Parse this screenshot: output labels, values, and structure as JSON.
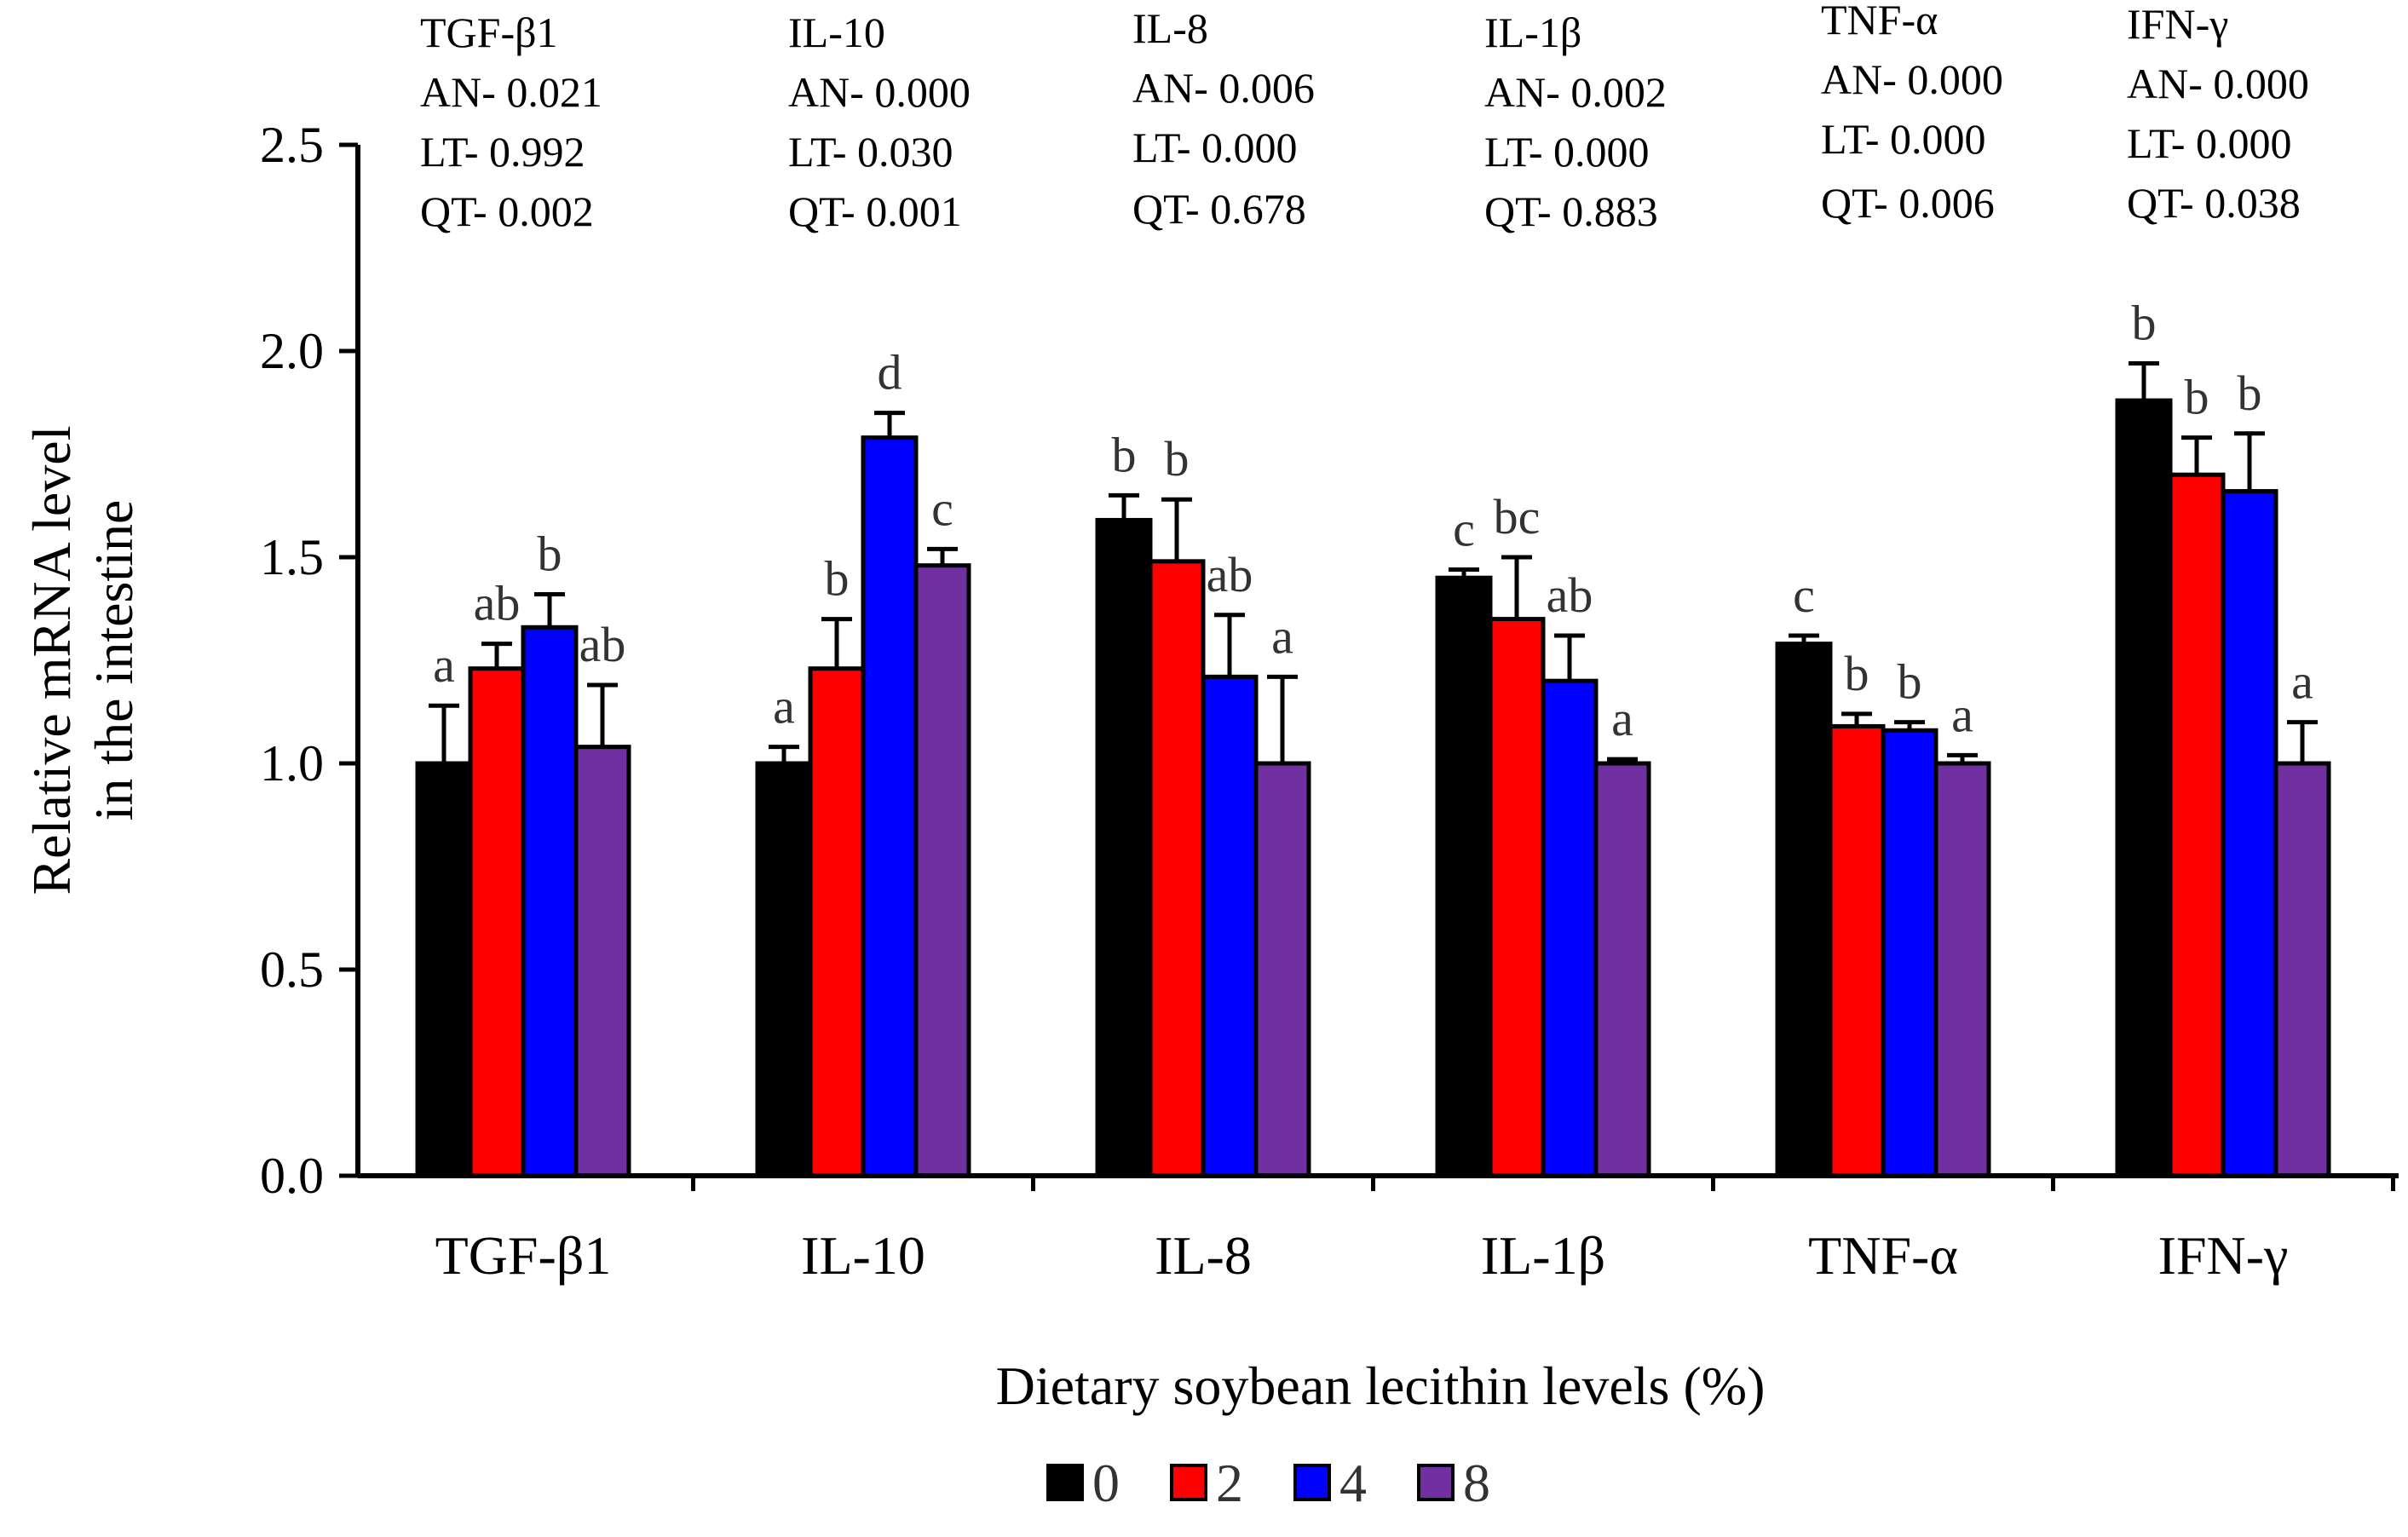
{
  "chart_data": {
    "type": "bar",
    "title": "",
    "ylabel": [
      "Relative mRNA level",
      "in the intestine"
    ],
    "xlabel": "Dietary soybean lecithin levels (%)",
    "ylim": [
      0,
      2.5
    ],
    "yticks": [
      0.0,
      0.5,
      1.0,
      1.5,
      2.0,
      2.5
    ],
    "ytick_labels": [
      "0.0",
      "0.5",
      "1.0",
      "1.5",
      "2.0",
      "2.5"
    ],
    "categories": [
      "TGF-β1",
      "IL-10",
      "IL-8",
      "IL-1β",
      "TNF-α",
      "IFN-γ"
    ],
    "series": [
      {
        "name": "0",
        "color": "#000000",
        "values": [
          1.0,
          1.0,
          1.59,
          1.45,
          1.29,
          1.88
        ],
        "errors": [
          0.14,
          0.04,
          0.06,
          0.02,
          0.02,
          0.09
        ],
        "letters": [
          "a",
          "a",
          "b",
          "c",
          "c",
          "b"
        ]
      },
      {
        "name": "2",
        "color": "#ff0000",
        "values": [
          1.23,
          1.23,
          1.49,
          1.35,
          1.09,
          1.7
        ],
        "errors": [
          0.06,
          0.12,
          0.15,
          0.15,
          0.03,
          0.09
        ],
        "letters": [
          "ab",
          "b",
          "b",
          "bc",
          "b",
          "b"
        ]
      },
      {
        "name": "4",
        "color": "#0000ff",
        "values": [
          1.33,
          1.79,
          1.21,
          1.2,
          1.08,
          1.66
        ],
        "errors": [
          0.08,
          0.06,
          0.15,
          0.11,
          0.02,
          0.14
        ],
        "letters": [
          "b",
          "d",
          "ab",
          "ab",
          "b",
          "b"
        ]
      },
      {
        "name": "8",
        "color": "#7030a0",
        "values": [
          1.04,
          1.48,
          1.0,
          1.0,
          1.0,
          1.0
        ],
        "errors": [
          0.15,
          0.04,
          0.21,
          0.01,
          0.02,
          0.1
        ],
        "letters": [
          "ab",
          "c",
          "a",
          "a",
          "a",
          "a"
        ]
      }
    ],
    "stats": [
      {
        "gene": "TGF-β1",
        "AN": "AN- 0.021",
        "LT": "LT- 0.992",
        "QT": "QT- 0.002"
      },
      {
        "gene": "IL-10",
        "AN": "AN- 0.000",
        "LT": "LT- 0.030",
        "QT": "QT- 0.001"
      },
      {
        "gene": "IL-8",
        "AN": "AN- 0.006",
        "LT": "LT- 0.000",
        "QT": "QT- 0.678"
      },
      {
        "gene": "IL-1β",
        "AN": "AN- 0.002",
        "LT": "LT- 0.000",
        "QT": "QT- 0.883"
      },
      {
        "gene": "TNF-α",
        "AN": "AN- 0.000",
        "LT": "LT- 0.000",
        "QT": "QT- 0.006"
      },
      {
        "gene": "IFN-γ",
        "AN": "AN- 0.000",
        "LT": "LT- 0.000",
        "QT": "QT- 0.038"
      }
    ],
    "legend": {
      "position": "bottom-center",
      "entries": [
        "0",
        "2",
        "4",
        "8"
      ]
    },
    "grid": false
  }
}
